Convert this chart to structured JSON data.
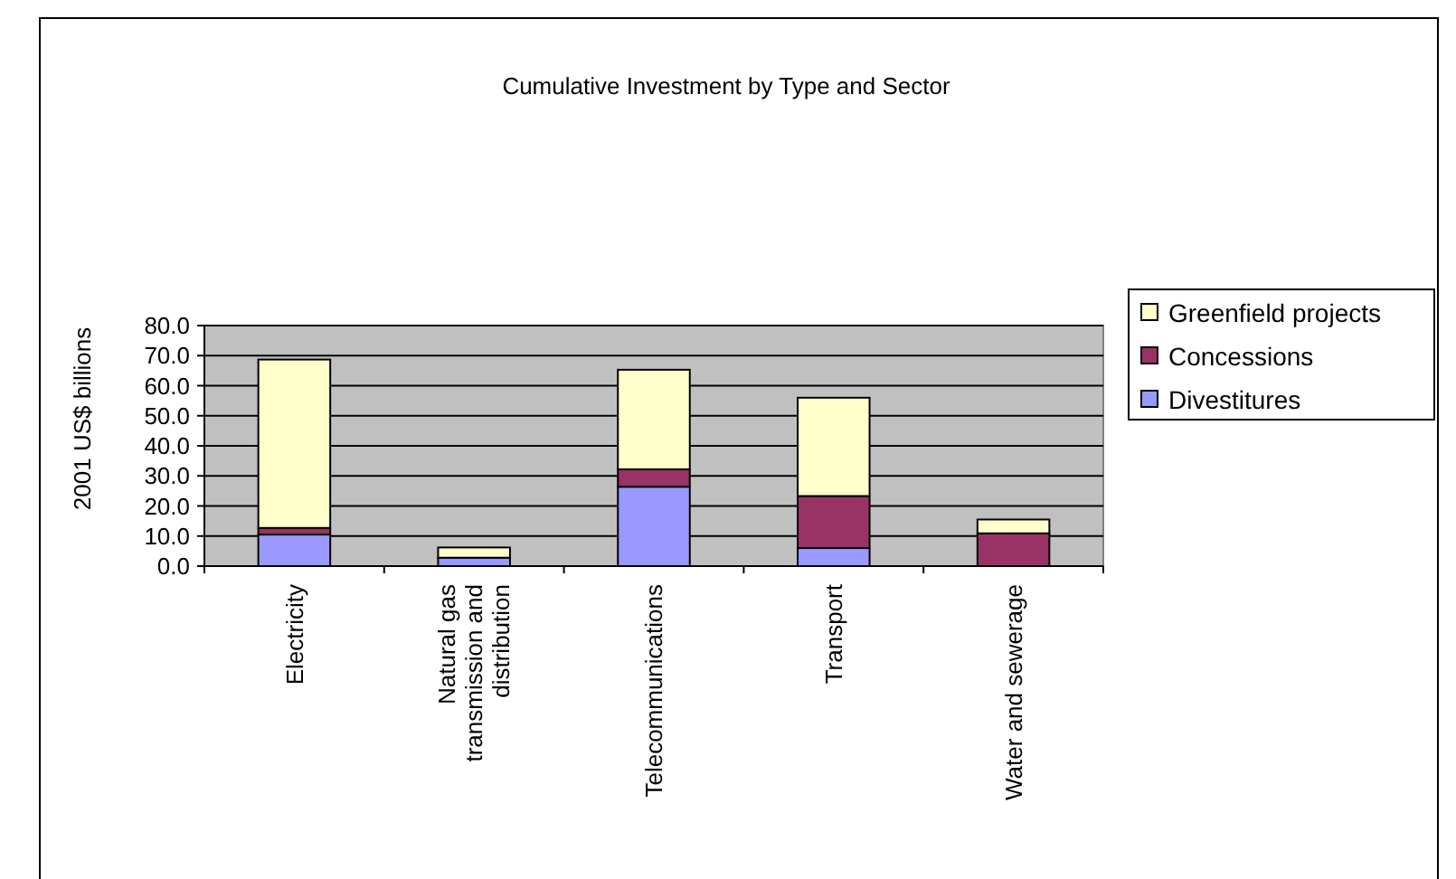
{
  "chart_data": {
    "type": "bar",
    "title": "Cumulative Investment by Type and Sector",
    "ylabel": "2001 US$ billions",
    "categories": [
      "Electricity",
      "Natural gas transmission and distribution",
      "Telecommunications",
      "Transport",
      "Water and sewerage"
    ],
    "stacked": true,
    "series": [
      {
        "name": "Divestitures",
        "color": "#9999ff",
        "values": [
          10.5,
          2.8,
          26.4,
          6.0,
          null
        ]
      },
      {
        "name": "Concessions",
        "color": "#993366",
        "values": [
          2.2,
          null,
          5.8,
          17.3,
          10.9
        ]
      },
      {
        "name": "Greenfield projects",
        "color": "#ffffcc",
        "values": [
          56.0,
          3.4,
          33.1,
          32.7,
          4.6
        ]
      }
    ],
    "ylim": [
      0,
      80
    ],
    "yticks": [
      {
        "value": 0,
        "label": "0.0"
      },
      {
        "value": 10,
        "label": "10.0"
      },
      {
        "value": 20,
        "label": "20.0"
      },
      {
        "value": 30,
        "label": "30.0"
      },
      {
        "value": 40,
        "label": "40.0"
      },
      {
        "value": 50,
        "label": "50.0"
      },
      {
        "value": 60,
        "label": "60.0"
      },
      {
        "value": 70,
        "label": "70.0"
      },
      {
        "value": 80,
        "label": "80.0"
      }
    ],
    "grid": "y",
    "legend": "right"
  }
}
